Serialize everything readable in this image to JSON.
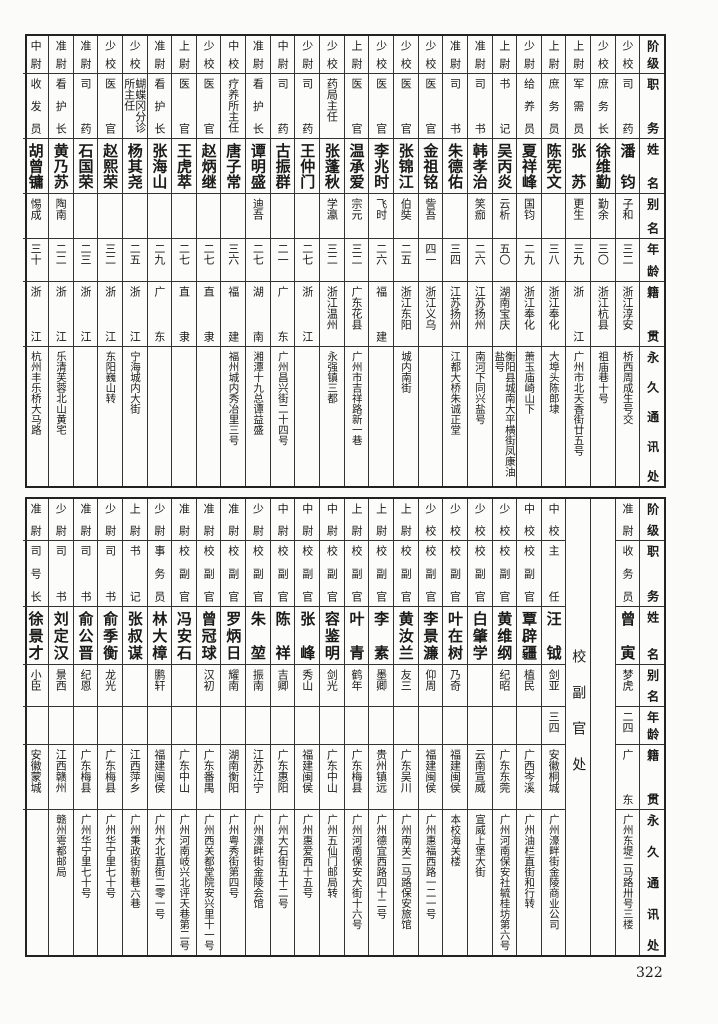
{
  "headers": [
    "阶级",
    "职务",
    "姓名",
    "别名",
    "年龄",
    "籍贯",
    "永久通讯处"
  ],
  "top_table": {
    "rows": [
      {
        "rank": "少校",
        "duty": "司药",
        "name": "潘钧",
        "alias": "子和",
        "age": "三二",
        "native": "浙江淳安",
        "address": "桥西周成生号交"
      },
      {
        "rank": "少校",
        "duty": "庶务长",
        "name": "徐维勤",
        "alias": "勤余",
        "age": "三〇",
        "native": "浙江杭县",
        "address": "祖庙巷十号"
      },
      {
        "rank": "上尉",
        "duty": "军需员",
        "name": "张苏",
        "alias": "更生",
        "age": "三九",
        "native": "浙江",
        "address": "广州市北天香街廿五号"
      },
      {
        "rank": "上尉",
        "duty": "庶务员",
        "name": "陈宪文",
        "alias": "",
        "age": "三八",
        "native": "浙江奉化",
        "address": "大埠头陈郎埭"
      },
      {
        "rank": "少尉",
        "duty": "给养员",
        "name": "夏祥峰",
        "alias": "国钧",
        "age": "二九",
        "native": "浙江奉化",
        "address": "萧玉庙崎山下"
      },
      {
        "rank": "上尉",
        "duty": "书记",
        "name": "吴丙炎",
        "alias": "云析",
        "age": "五〇",
        "native": "湖南宝庆",
        "address": "衡阳县城南大平横街凤康油盐号"
      },
      {
        "rank": "准尉",
        "duty": "司书",
        "name": "韩孝治",
        "alias": "笑痂",
        "age": "二六",
        "native": "江苏扬州",
        "address": "南河下同兴盐号"
      },
      {
        "rank": "准尉",
        "duty": "司书",
        "name": "朱德佑",
        "alias": "",
        "age": "三四",
        "native": "江苏扬州",
        "address": "江都大桥朱诚正堂"
      },
      {
        "rank": "少校",
        "duty": "医官",
        "name": "金祖铭",
        "alias": "訾吾",
        "age": "四一",
        "native": "浙江义乌",
        "address": ""
      },
      {
        "rank": "少校",
        "duty": "医官",
        "name": "张锦江",
        "alias": "伯奘",
        "age": "二五",
        "native": "浙江东阳",
        "address": "城内南街"
      },
      {
        "rank": "少校",
        "duty": "医官",
        "name": "李兆时",
        "alias": "飞时",
        "age": "二六",
        "native": "福建",
        "address": ""
      },
      {
        "rank": "上尉",
        "duty": "医官",
        "name": "温承爱",
        "alias": "宗元",
        "age": "三二",
        "native": "广东花县",
        "address": "广州市吉祥路新一巷"
      },
      {
        "rank": "少校",
        "duty": "药局主任",
        "name": "张蓬秋",
        "alias": "学瀛",
        "age": "三二",
        "native": "浙江温州",
        "address": "永强镇三都"
      },
      {
        "rank": "少尉",
        "duty": "司药",
        "name": "王仲门",
        "alias": "",
        "age": "二七",
        "native": "浙江",
        "address": ""
      },
      {
        "rank": "中尉",
        "duty": "司药",
        "name": "古振群",
        "alias": "",
        "age": "二一",
        "native": "广东",
        "address": "广州昌兴街二十四号"
      },
      {
        "rank": "准尉",
        "duty": "看护长",
        "name": "谭明盛",
        "alias": "迪吾",
        "age": "二七",
        "native": "湖南",
        "address": "湘潭十九总谭益盛"
      },
      {
        "rank": "中校",
        "duty": "疗养所主任",
        "name": "唐子常",
        "alias": "",
        "age": "三六",
        "native": "福建",
        "address": "福州城内秀冶里三号"
      },
      {
        "rank": "少校",
        "duty": "医官",
        "name": "赵炳继",
        "alias": "",
        "age": "二七",
        "native": "直隶",
        "address": ""
      },
      {
        "rank": "上尉",
        "duty": "医官",
        "name": "王虎萃",
        "alias": "",
        "age": "二七",
        "native": "直隶",
        "address": ""
      },
      {
        "rank": "准尉",
        "duty": "看护长",
        "name": "张海山",
        "alias": "",
        "age": "二九",
        "native": "广东",
        "address": ""
      },
      {
        "rank": "少校",
        "duty": "蝴蝶冈分诊所主任",
        "name": "杨其尧",
        "alias": "",
        "age": "二五",
        "native": "浙江",
        "address": "宁海城内大街"
      },
      {
        "rank": "少校",
        "duty": "医官",
        "name": "赵熙荣",
        "alias": "",
        "age": "三二",
        "native": "浙江",
        "address": "东阳巍山转"
      },
      {
        "rank": "准尉",
        "duty": "司药",
        "name": "石国荣",
        "alias": "",
        "age": "二三",
        "native": "浙江",
        "address": ""
      },
      {
        "rank": "准尉",
        "duty": "看护长",
        "name": "黄乃苏",
        "alias": "陶南",
        "age": "二二",
        "native": "浙江",
        "address": "乐清芙蓉北山黄宅"
      },
      {
        "rank": "中尉",
        "duty": "收发员",
        "name": "胡曾镛",
        "alias": "惕成",
        "age": "三十",
        "native": "浙江",
        "address": "杭州丰乐桥大马路"
      }
    ]
  },
  "bottom_table": {
    "rows_before_section": [
      {
        "rank": "准尉",
        "duty": "收务员",
        "name": "曾寅",
        "alias": "梦虎",
        "age": "二四",
        "native": "广东",
        "address": "广州东堤二马路卅号三楼"
      }
    ],
    "section_label": "校副官处",
    "rows": [
      {
        "rank": "中校",
        "duty": "主任",
        "name": "汪钺",
        "alias": "剑亚",
        "age": "三四",
        "native": "安徽桐城",
        "address": "广州濠畔街金陵商业公司"
      },
      {
        "rank": "中校",
        "duty": "校副官",
        "name": "覃辟疆",
        "alias": "植民",
        "age": "",
        "native": "广西岑溪",
        "address": "广州油栏直街和行转"
      },
      {
        "rank": "少校",
        "duty": "校副官",
        "name": "黄维纲",
        "alias": "纪昭",
        "age": "",
        "native": "广东东莞",
        "address": "广州河南保安社毓桂坊第六号"
      },
      {
        "rank": "少校",
        "duty": "校副官",
        "name": "白肇学",
        "alias": "",
        "age": "",
        "native": "云南宣威",
        "address": "宣威上堡大街"
      },
      {
        "rank": "少校",
        "duty": "校副官",
        "name": "叶在树",
        "alias": "乃奇",
        "age": "",
        "native": "福建闽侯",
        "address": "本校海关楼"
      },
      {
        "rank": "少校",
        "duty": "校副官",
        "name": "李景濂",
        "alias": "仰周",
        "age": "",
        "native": "福建闽侯",
        "address": "广州惠福西路一二一号"
      },
      {
        "rank": "上尉",
        "duty": "校副官",
        "name": "黄汝兰",
        "alias": "友三",
        "age": "",
        "native": "广东吴川",
        "address": "广州南关二马路保安旅馆"
      },
      {
        "rank": "上尉",
        "duty": "校副官",
        "name": "李素",
        "alias": "墨卿",
        "age": "",
        "native": "贵州镇远",
        "address": "广州德宜西路四十二号"
      },
      {
        "rank": "上尉",
        "duty": "校副官",
        "name": "叶青",
        "alias": "鹤年",
        "age": "",
        "native": "广东梅县",
        "address": "广州河南保安大街十六号"
      },
      {
        "rank": "中尉",
        "duty": "校副官",
        "name": "容鉴明",
        "alias": "剑光",
        "age": "",
        "native": "广东中山",
        "address": "广州五仙门邮局转"
      },
      {
        "rank": "中尉",
        "duty": "校副官",
        "name": "张峰",
        "alias": "秀山",
        "age": "",
        "native": "福建闽侯",
        "address": "广州惠爱西十五号"
      },
      {
        "rank": "中尉",
        "duty": "校副官",
        "name": "陈祥",
        "alias": "吉卿",
        "age": "",
        "native": "广东惠阳",
        "address": "广州大石街五十二号"
      },
      {
        "rank": "少尉",
        "duty": "校副官",
        "name": "朱堃",
        "alias": "振南",
        "age": "",
        "native": "江苏江宁",
        "address": "广州濠畔街金陵会馆"
      },
      {
        "rank": "准尉",
        "duty": "校副官",
        "name": "罗炳日",
        "alias": "耀南",
        "age": "",
        "native": "湖南衡阳",
        "address": "广州粤秀街第四号"
      },
      {
        "rank": "准尉",
        "duty": "校副官",
        "name": "曾冠球",
        "alias": "汉初",
        "age": "",
        "native": "广东番禺",
        "address": "广州西关都堂院安兴里十一号"
      },
      {
        "rank": "准尉",
        "duty": "校副官",
        "name": "冯安石",
        "alias": "",
        "age": "",
        "native": "广东中山",
        "address": "广州河南岐兴北评天巷第二号"
      },
      {
        "rank": "少尉",
        "duty": "事务员",
        "name": "林大樟",
        "alias": "鹏轩",
        "age": "",
        "native": "福建闽侯",
        "address": "广州大北直街二零一号"
      },
      {
        "rank": "上尉",
        "duty": "书记",
        "name": "张叔谋",
        "alias": "",
        "age": "",
        "native": "江西萍乡",
        "address": "广州秉政街新巷六巷"
      },
      {
        "rank": "少尉",
        "duty": "司书",
        "name": "俞季衡",
        "alias": "龙光",
        "age": "",
        "native": "广东梅县",
        "address": "广州华宁里七十号"
      },
      {
        "rank": "准尉",
        "duty": "司书",
        "name": "俞公晋",
        "alias": "纪恩",
        "age": "",
        "native": "广东梅县",
        "address": "广州华宁里七十号"
      },
      {
        "rank": "少尉",
        "duty": "司书",
        "name": "刘定汉",
        "alias": "景西",
        "age": "",
        "native": "江西赣州",
        "address": "赣州雩都邮局"
      },
      {
        "rank": "准尉",
        "duty": "司号长",
        "name": "徐景才",
        "alias": "小臣",
        "age": "",
        "native": "安徽蒙城",
        "address": ""
      }
    ]
  },
  "page_number": "322"
}
